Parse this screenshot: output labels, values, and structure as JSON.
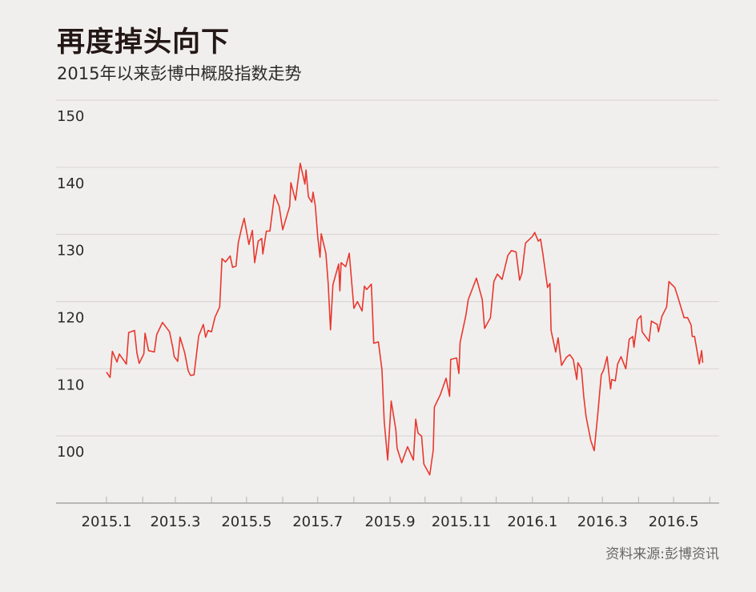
{
  "chart_data": {
    "type": "line",
    "title": "再度掉头向下",
    "subtitle": "2015年以来彭博中概股指数走势",
    "source": "资料来源:彭博资讯",
    "xlabel": "",
    "ylabel": "",
    "ylim": [
      90,
      150
    ],
    "yticks": [
      "150",
      "140",
      "130",
      "120",
      "110",
      "100"
    ],
    "xticks": [
      {
        "label": "2015.1",
        "date": "2015-01-01"
      },
      {
        "label": "2015.3",
        "date": "2015-03-01"
      },
      {
        "label": "2015.5",
        "date": "2015-05-01"
      },
      {
        "label": "2015.7",
        "date": "2015-07-01"
      },
      {
        "label": "2015.9",
        "date": "2015-09-01"
      },
      {
        "label": "2015.11",
        "date": "2015-11-01"
      },
      {
        "label": "2016.1",
        "date": "2016-01-01"
      },
      {
        "label": "2016.3",
        "date": "2016-03-01"
      },
      {
        "label": "2016.5",
        "date": "2016-05-01"
      }
    ],
    "grid": true,
    "line_color": "#e8382e",
    "series": [
      {
        "points": [
          [
            "2015-01-01",
            109.5
          ],
          [
            "2015-01-04",
            108.7
          ],
          [
            "2015-01-06",
            112.6
          ],
          [
            "2015-01-10",
            111.0
          ],
          [
            "2015-01-12",
            112.2
          ],
          [
            "2015-01-18",
            110.7
          ],
          [
            "2015-01-20",
            115.4
          ],
          [
            "2015-01-25",
            115.7
          ],
          [
            "2015-01-27",
            112.4
          ],
          [
            "2015-01-29",
            110.8
          ],
          [
            "2015-02-02",
            112.2
          ],
          [
            "2015-02-03",
            115.3
          ],
          [
            "2015-02-06",
            112.7
          ],
          [
            "2015-02-11",
            112.5
          ],
          [
            "2015-02-13",
            115.1
          ],
          [
            "2015-02-18",
            116.9
          ],
          [
            "2015-02-24",
            115.5
          ],
          [
            "2015-02-27",
            113.0
          ],
          [
            "2015-02-28",
            111.8
          ],
          [
            "2015-03-03",
            111.1
          ],
          [
            "2015-03-05",
            114.7
          ],
          [
            "2015-03-09",
            112.4
          ],
          [
            "2015-03-12",
            109.7
          ],
          [
            "2015-03-14",
            109.0
          ],
          [
            "2015-03-17",
            109.1
          ],
          [
            "2015-03-21",
            114.9
          ],
          [
            "2015-03-25",
            116.6
          ],
          [
            "2015-03-27",
            114.7
          ],
          [
            "2015-03-29",
            115.7
          ],
          [
            "2015-04-01",
            115.5
          ],
          [
            "2015-04-04",
            117.7
          ],
          [
            "2015-04-08",
            119.2
          ],
          [
            "2015-04-10",
            126.4
          ],
          [
            "2015-04-13",
            125.9
          ],
          [
            "2015-04-17",
            126.8
          ],
          [
            "2015-04-19",
            125.1
          ],
          [
            "2015-04-22",
            125.3
          ],
          [
            "2015-04-24",
            128.8
          ],
          [
            "2015-04-27",
            131.1
          ],
          [
            "2015-04-29",
            132.4
          ],
          [
            "2015-05-03",
            128.5
          ],
          [
            "2015-05-06",
            130.6
          ],
          [
            "2015-05-08",
            125.8
          ],
          [
            "2015-05-11",
            129.0
          ],
          [
            "2015-05-14",
            129.4
          ],
          [
            "2015-05-15",
            127.1
          ],
          [
            "2015-05-18",
            130.5
          ],
          [
            "2015-05-21",
            130.5
          ],
          [
            "2015-05-25",
            135.9
          ],
          [
            "2015-05-29",
            134.2
          ],
          [
            "2015-06-01",
            130.7
          ],
          [
            "2015-06-07",
            134.2
          ],
          [
            "2015-06-08",
            137.7
          ],
          [
            "2015-06-12",
            135.1
          ],
          [
            "2015-06-16",
            140.6
          ],
          [
            "2015-06-20",
            137.5
          ],
          [
            "2015-06-21",
            139.6
          ],
          [
            "2015-06-23",
            135.6
          ],
          [
            "2015-06-26",
            134.8
          ],
          [
            "2015-06-27",
            136.3
          ],
          [
            "2015-06-29",
            134.2
          ],
          [
            "2015-07-01",
            129.7
          ],
          [
            "2015-07-03",
            126.6
          ],
          [
            "2015-07-04",
            130.1
          ],
          [
            "2015-07-08",
            127.2
          ],
          [
            "2015-07-10",
            122.7
          ],
          [
            "2015-07-12",
            115.8
          ],
          [
            "2015-07-14",
            122.5
          ],
          [
            "2015-07-19",
            125.6
          ],
          [
            "2015-07-20",
            121.6
          ],
          [
            "2015-07-21",
            125.8
          ],
          [
            "2015-07-25",
            125.2
          ],
          [
            "2015-07-28",
            127.2
          ],
          [
            "2015-08-01",
            119.0
          ],
          [
            "2015-08-04",
            120.0
          ],
          [
            "2015-08-08",
            118.6
          ],
          [
            "2015-08-10",
            122.3
          ],
          [
            "2015-08-12",
            121.8
          ],
          [
            "2015-08-16",
            122.6
          ],
          [
            "2015-08-18",
            113.8
          ],
          [
            "2015-08-22",
            114.0
          ],
          [
            "2015-08-25",
            109.9
          ],
          [
            "2015-08-27",
            102.1
          ],
          [
            "2015-08-30",
            96.4
          ],
          [
            "2015-08-31",
            99.4
          ],
          [
            "2015-09-02",
            105.2
          ],
          [
            "2015-09-06",
            100.9
          ],
          [
            "2015-09-07",
            98.2
          ],
          [
            "2015-09-11",
            96.0
          ],
          [
            "2015-09-16",
            98.4
          ],
          [
            "2015-09-21",
            96.4
          ],
          [
            "2015-09-23",
            102.5
          ],
          [
            "2015-09-25",
            100.4
          ],
          [
            "2015-09-28",
            100.0
          ],
          [
            "2015-09-30",
            95.8
          ],
          [
            "2015-10-05",
            94.2
          ],
          [
            "2015-10-08",
            97.9
          ],
          [
            "2015-10-09",
            104.3
          ],
          [
            "2015-10-14",
            106.1
          ],
          [
            "2015-10-19",
            108.6
          ],
          [
            "2015-10-22",
            105.9
          ],
          [
            "2015-10-23",
            111.4
          ],
          [
            "2015-10-28",
            111.6
          ],
          [
            "2015-10-30",
            109.3
          ],
          [
            "2015-10-31",
            113.9
          ],
          [
            "2015-11-05",
            118.0
          ],
          [
            "2015-11-07",
            120.3
          ],
          [
            "2015-11-14",
            123.5
          ],
          [
            "2015-11-19",
            120.3
          ],
          [
            "2015-11-21",
            116.0
          ],
          [
            "2015-11-26",
            117.6
          ],
          [
            "2015-11-29",
            123.0
          ],
          [
            "2015-12-02",
            124.1
          ],
          [
            "2015-12-06",
            123.3
          ],
          [
            "2015-12-11",
            126.9
          ],
          [
            "2015-12-14",
            127.6
          ],
          [
            "2015-12-18",
            127.4
          ],
          [
            "2015-12-21",
            123.2
          ],
          [
            "2015-12-23",
            124.2
          ],
          [
            "2015-12-26",
            128.7
          ],
          [
            "2016-01-01",
            129.7
          ],
          [
            "2016-01-03",
            130.3
          ],
          [
            "2016-01-06",
            129.0
          ],
          [
            "2016-01-08",
            129.3
          ],
          [
            "2016-01-10",
            127.1
          ],
          [
            "2016-01-14",
            122.1
          ],
          [
            "2016-01-16",
            122.7
          ],
          [
            "2016-01-17",
            115.7
          ],
          [
            "2016-01-21",
            112.5
          ],
          [
            "2016-01-23",
            114.6
          ],
          [
            "2016-01-26",
            110.5
          ],
          [
            "2016-01-30",
            111.7
          ],
          [
            "2016-02-02",
            112.1
          ],
          [
            "2016-02-05",
            111.4
          ],
          [
            "2016-02-08",
            108.4
          ],
          [
            "2016-02-09",
            110.9
          ],
          [
            "2016-02-12",
            110.0
          ],
          [
            "2016-02-14",
            105.9
          ],
          [
            "2016-02-16",
            102.9
          ],
          [
            "2016-02-20",
            99.3
          ],
          [
            "2016-02-23",
            97.8
          ],
          [
            "2016-02-26",
            103.2
          ],
          [
            "2016-02-29",
            109.1
          ],
          [
            "2016-03-02",
            109.8
          ],
          [
            "2016-03-05",
            111.8
          ],
          [
            "2016-03-08",
            107.0
          ],
          [
            "2016-03-09",
            108.4
          ],
          [
            "2016-03-12",
            108.2
          ],
          [
            "2016-03-14",
            110.7
          ],
          [
            "2016-03-17",
            111.8
          ],
          [
            "2016-03-21",
            110.0
          ],
          [
            "2016-03-24",
            114.4
          ],
          [
            "2016-03-27",
            114.8
          ],
          [
            "2016-03-28",
            113.2
          ],
          [
            "2016-03-31",
            117.3
          ],
          [
            "2016-04-03",
            117.9
          ],
          [
            "2016-04-04",
            115.5
          ],
          [
            "2016-04-10",
            114.1
          ],
          [
            "2016-04-12",
            117.1
          ],
          [
            "2016-04-17",
            116.6
          ],
          [
            "2016-04-18",
            115.5
          ],
          [
            "2016-04-21",
            117.8
          ],
          [
            "2016-04-25",
            119.2
          ],
          [
            "2016-04-27",
            123.0
          ],
          [
            "2016-05-02",
            122.1
          ],
          [
            "2016-05-05",
            120.5
          ],
          [
            "2016-05-10",
            117.6
          ],
          [
            "2016-05-13",
            117.6
          ],
          [
            "2016-05-16",
            116.5
          ],
          [
            "2016-05-17",
            114.8
          ],
          [
            "2016-05-19",
            114.8
          ],
          [
            "2016-05-23",
            110.7
          ],
          [
            "2016-05-25",
            112.7
          ],
          [
            "2016-05-26",
            110.9
          ]
        ]
      }
    ]
  }
}
